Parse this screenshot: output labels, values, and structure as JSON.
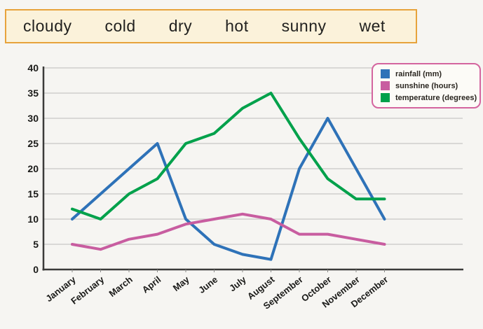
{
  "word_bank": {
    "words": [
      "cloudy",
      "cold",
      "dry",
      "hot",
      "sunny",
      "wet"
    ]
  },
  "chart_data": {
    "type": "line",
    "categories": [
      "January",
      "February",
      "March",
      "April",
      "May",
      "June",
      "July",
      "August",
      "September",
      "October",
      "November",
      "December"
    ],
    "series": [
      {
        "name": "rainfall (mm)",
        "color": "#2e72b8",
        "values": [
          10,
          15,
          20,
          25,
          10,
          5,
          3,
          2,
          20,
          30,
          20,
          10
        ]
      },
      {
        "name": "sunshine (hours)",
        "color": "#c85da0",
        "values": [
          5,
          4,
          6,
          7,
          9,
          10,
          11,
          10,
          7,
          7,
          6,
          5
        ]
      },
      {
        "name": "temperature (degrees)",
        "color": "#00a14b",
        "values": [
          12,
          10,
          15,
          18,
          25,
          27,
          32,
          35,
          26,
          18,
          14,
          14
        ]
      }
    ],
    "ylim": [
      0,
      40
    ],
    "yticks": [
      0,
      5,
      10,
      15,
      20,
      25,
      30,
      35,
      40
    ],
    "grid": true,
    "legend_position": "top-right"
  },
  "colors": {
    "word_bank_bg": "#fbf2da",
    "word_bank_border": "#e7a33c",
    "legend_border": "#d4659f",
    "legend_bg": "#fcfbf7",
    "gridline": "#c8c8c6",
    "axis": "#3b3b39",
    "tick_label": "#1a1a18"
  }
}
